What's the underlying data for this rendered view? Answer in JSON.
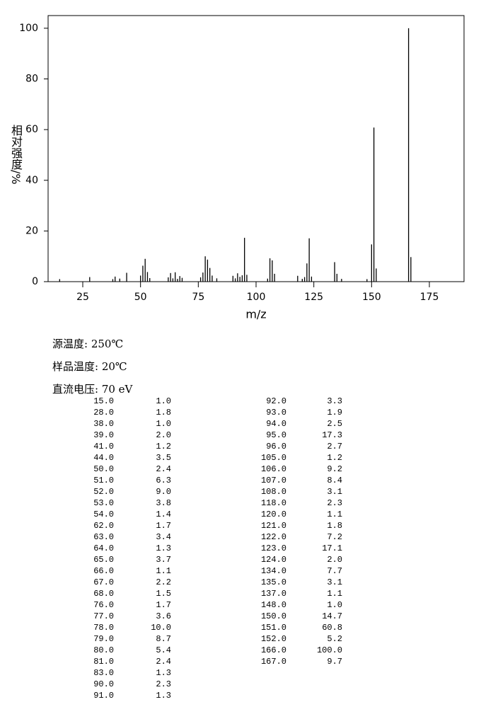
{
  "chart_data": {
    "type": "spectrum",
    "x_label": "m/z",
    "y_label": "相对强度/%",
    "color": "#000000",
    "xlim": [
      10,
      190
    ],
    "ylim": [
      0,
      105
    ],
    "xticks": [
      25,
      50,
      75,
      100,
      125,
      150,
      175
    ],
    "yticks": [
      0,
      20,
      40,
      60,
      80,
      100
    ],
    "x": [
      15,
      28,
      38,
      39,
      41,
      44,
      50,
      51,
      52,
      53,
      54,
      62,
      63,
      64,
      65,
      66,
      67,
      68,
      76,
      77,
      78,
      79,
      80,
      81,
      83,
      90,
      91,
      92,
      93,
      94,
      95,
      96,
      105,
      106,
      107,
      108,
      118,
      120,
      121,
      122,
      123,
      124,
      134,
      135,
      137,
      148,
      150,
      151,
      152,
      166,
      167
    ],
    "values": [
      1.0,
      1.8,
      1.0,
      2.0,
      1.2,
      3.5,
      2.4,
      6.3,
      9.0,
      3.8,
      1.4,
      1.7,
      3.4,
      1.3,
      3.7,
      1.1,
      2.2,
      1.5,
      1.7,
      3.6,
      10.0,
      8.7,
      5.4,
      2.4,
      1.3,
      2.3,
      1.3,
      3.3,
      1.9,
      2.5,
      17.3,
      2.7,
      1.2,
      9.2,
      8.4,
      3.1,
      2.3,
      1.1,
      1.8,
      7.2,
      17.1,
      2.0,
      7.7,
      3.1,
      1.1,
      1.0,
      14.7,
      60.8,
      5.2,
      100.0,
      9.7
    ]
  },
  "conditions": [
    "源温度: 250℃",
    "样品温度: 20℃",
    "直流电压: 70 eV"
  ],
  "table": {
    "left": [
      [
        "15.0",
        "1.0"
      ],
      [
        "28.0",
        "1.8"
      ],
      [
        "38.0",
        "1.0"
      ],
      [
        "39.0",
        "2.0"
      ],
      [
        "41.0",
        "1.2"
      ],
      [
        "44.0",
        "3.5"
      ],
      [
        "50.0",
        "2.4"
      ],
      [
        "51.0",
        "6.3"
      ],
      [
        "52.0",
        "9.0"
      ],
      [
        "53.0",
        "3.8"
      ],
      [
        "54.0",
        "1.4"
      ],
      [
        "62.0",
        "1.7"
      ],
      [
        "63.0",
        "3.4"
      ],
      [
        "64.0",
        "1.3"
      ],
      [
        "65.0",
        "3.7"
      ],
      [
        "66.0",
        "1.1"
      ],
      [
        "67.0",
        "2.2"
      ],
      [
        "68.0",
        "1.5"
      ],
      [
        "76.0",
        "1.7"
      ],
      [
        "77.0",
        "3.6"
      ],
      [
        "78.0",
        "10.0"
      ],
      [
        "79.0",
        "8.7"
      ],
      [
        "80.0",
        "5.4"
      ],
      [
        "81.0",
        "2.4"
      ],
      [
        "83.0",
        "1.3"
      ],
      [
        "90.0",
        "2.3"
      ],
      [
        "91.0",
        "1.3"
      ]
    ],
    "right": [
      [
        "92.0",
        "3.3"
      ],
      [
        "93.0",
        "1.9"
      ],
      [
        "94.0",
        "2.5"
      ],
      [
        "95.0",
        "17.3"
      ],
      [
        "96.0",
        "2.7"
      ],
      [
        "105.0",
        "1.2"
      ],
      [
        "106.0",
        "9.2"
      ],
      [
        "107.0",
        "8.4"
      ],
      [
        "108.0",
        "3.1"
      ],
      [
        "118.0",
        "2.3"
      ],
      [
        "120.0",
        "1.1"
      ],
      [
        "121.0",
        "1.8"
      ],
      [
        "122.0",
        "7.2"
      ],
      [
        "123.0",
        "17.1"
      ],
      [
        "124.0",
        "2.0"
      ],
      [
        "134.0",
        "7.7"
      ],
      [
        "135.0",
        "3.1"
      ],
      [
        "137.0",
        "1.1"
      ],
      [
        "148.0",
        "1.0"
      ],
      [
        "150.0",
        "14.7"
      ],
      [
        "151.0",
        "60.8"
      ],
      [
        "152.0",
        "5.2"
      ],
      [
        "166.0",
        "100.0"
      ],
      [
        "167.0",
        "9.7"
      ]
    ]
  }
}
